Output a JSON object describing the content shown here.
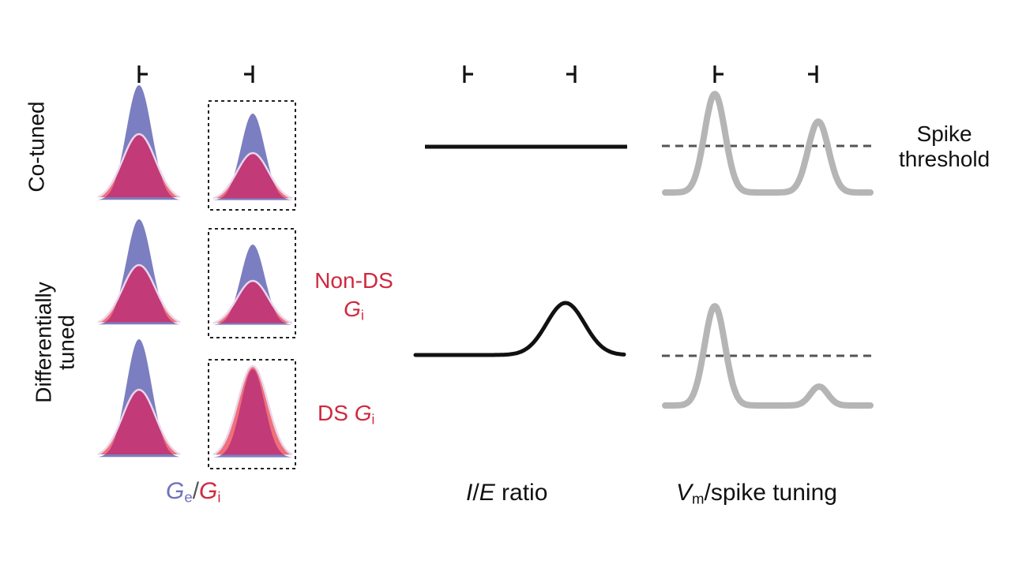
{
  "rows": {
    "co_tuned": "Co-tuned",
    "diff_line1": "Differentially",
    "diff_line2": "tuned"
  },
  "inhibition": {
    "non_ds_line1": "Non-DS",
    "non_ds_g": "G",
    "non_ds_sub": "i",
    "ds_prefix": "DS ",
    "ds_g": "G",
    "ds_sub": "i"
  },
  "threshold": {
    "line1": "Spike",
    "line2": "threshold"
  },
  "bottom_labels": {
    "g_e": "G",
    "g_e_sub": "e",
    "slash": "/",
    "g_i": "G",
    "g_i_sub": "i",
    "ie_i": "I",
    "ie_slash": "/",
    "ie_e": "E",
    "ie_rest": " ratio",
    "vm": "V",
    "vm_sub": "m",
    "vm_rest": "/spike tuning"
  },
  "colors": {
    "excitation": "#7b7ec0",
    "inhibition": "#f0707a",
    "overlap": "#c23a78",
    "outline": "#e9d6ec",
    "inhibition_text": "#d0283f",
    "trace": "#b5b5b5",
    "ie_line": "#111111"
  },
  "icons": {
    "preferred": "preferred-direction-icon",
    "null": "null-direction-icon"
  }
}
